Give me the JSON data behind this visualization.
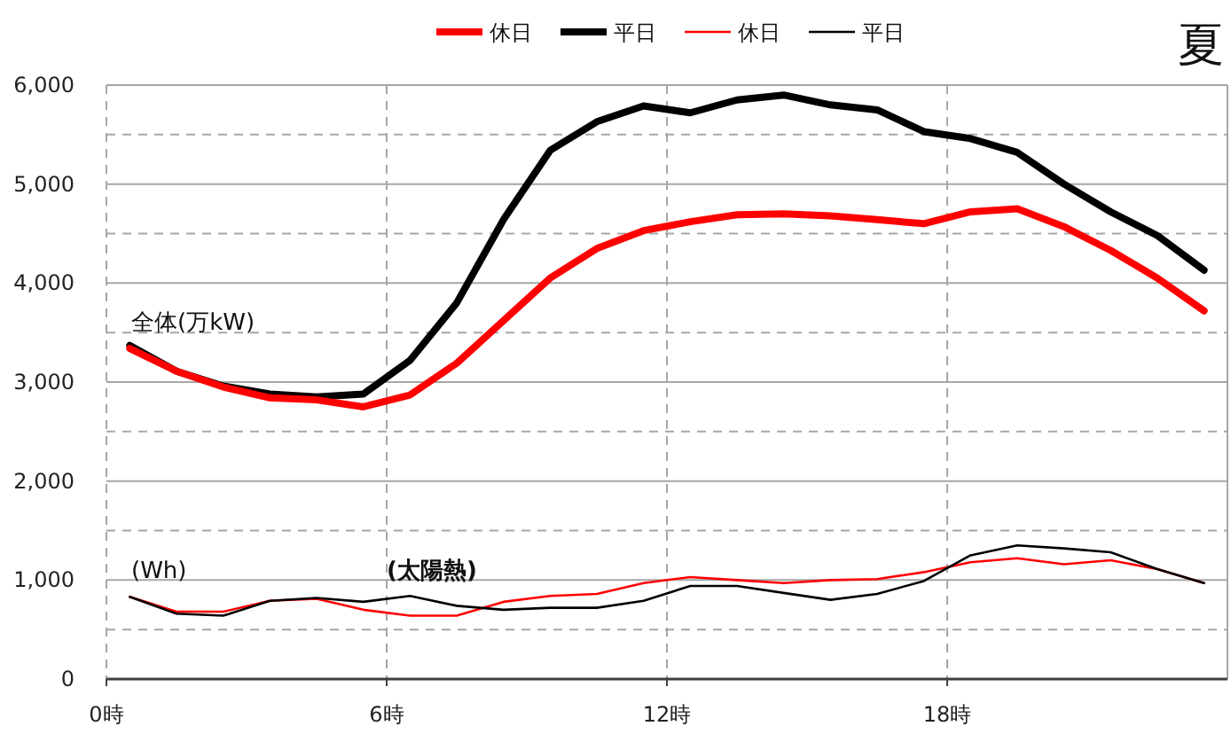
{
  "chart_data": {
    "type": "line",
    "title": "夏",
    "x": [
      0.5,
      1.5,
      2.5,
      3.5,
      4.5,
      5.5,
      6.5,
      7.5,
      8.5,
      9.5,
      10.5,
      11.5,
      12.5,
      13.5,
      14.5,
      15.5,
      16.5,
      17.5,
      18.5,
      19.5,
      20.5,
      21.5,
      22.5,
      23.5
    ],
    "series": [
      {
        "name": "休日",
        "color": "#ff0000",
        "values": [
          3340,
          3110,
          2950,
          2840,
          2820,
          2750,
          2870,
          3190,
          3620,
          4050,
          4350,
          4530,
          4620,
          4690,
          4700,
          4680,
          4640,
          4600,
          4720,
          4750,
          4570,
          4330,
          4050,
          3720
        ]
      },
      {
        "name": "平日",
        "color": "#000000",
        "values": [
          3370,
          3110,
          2960,
          2880,
          2850,
          2880,
          3220,
          3800,
          4640,
          5340,
          5630,
          5790,
          5720,
          5850,
          5900,
          5800,
          5750,
          5530,
          5460,
          5320,
          5000,
          4720,
          4480,
          4130
        ]
      },
      {
        "name": "休日",
        "color": "#ff0000",
        "values": [
          830,
          680,
          680,
          790,
          810,
          700,
          640,
          640,
          780,
          840,
          860,
          970,
          1030,
          1000,
          970,
          1000,
          1010,
          1080,
          1180,
          1220,
          1160,
          1200,
          1110,
          970
        ]
      },
      {
        "name": "平日",
        "color": "#000000",
        "values": [
          830,
          660,
          640,
          790,
          820,
          780,
          840,
          740,
          700,
          720,
          720,
          790,
          940,
          940,
          870,
          800,
          860,
          990,
          1250,
          1350,
          1320,
          1280,
          1110,
          970
        ]
      }
    ],
    "xlim": [
      0,
      24
    ],
    "xticks": [
      {
        "value": 0,
        "label": "0時"
      },
      {
        "value": 6,
        "label": "6時"
      },
      {
        "value": 12,
        "label": "12時"
      },
      {
        "value": 18,
        "label": "18時"
      }
    ],
    "ylim": [
      0,
      6000
    ],
    "yticks": [
      {
        "value": 0,
        "label": "0"
      },
      {
        "value": 500,
        "label": null
      },
      {
        "value": 1000,
        "label": "1,000"
      },
      {
        "value": 1500,
        "label": null
      },
      {
        "value": 2000,
        "label": "2,000"
      },
      {
        "value": 2500,
        "label": null
      },
      {
        "value": 3000,
        "label": "3,000"
      },
      {
        "value": 3500,
        "label": null
      },
      {
        "value": 4000,
        "label": "4,000"
      },
      {
        "value": 4500,
        "label": null
      },
      {
        "value": 5000,
        "label": "5,000"
      },
      {
        "value": 5500,
        "label": null
      },
      {
        "value": 6000,
        "label": "6,000"
      }
    ],
    "grid": true,
    "legend": "top",
    "marker": "none",
    "line_style": "solid",
    "annotations": [
      "全体(万kW)",
      "(Wh)",
      "(太陽熱)"
    ]
  }
}
